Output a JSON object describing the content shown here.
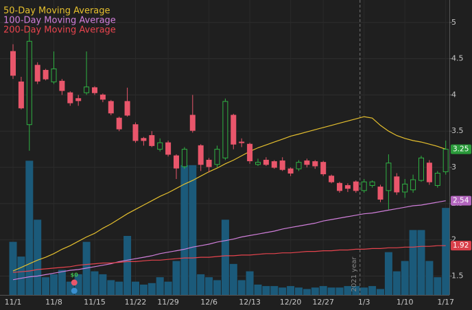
{
  "chart_data": {
    "type": "candlestick",
    "categories": [
      "11/1",
      null,
      null,
      null,
      null,
      "11/8",
      null,
      null,
      null,
      null,
      "11/15",
      null,
      null,
      null,
      null,
      "11/22",
      null,
      null,
      null,
      "11/29",
      null,
      null,
      null,
      null,
      "12/6",
      null,
      null,
      null,
      null,
      "12/13",
      null,
      null,
      null,
      null,
      "12/20",
      null,
      null,
      null,
      "12/27",
      null,
      null,
      null,
      null,
      "1/3",
      null,
      null,
      null,
      null,
      "1/10",
      null,
      null,
      null,
      null,
      "1/17"
    ],
    "open": [
      4.6,
      4.18,
      3.59,
      4.41,
      4.34,
      4.18,
      4.19,
      4.03,
      3.95,
      4.03,
      4.1,
      4.0,
      3.91,
      3.68,
      3.91,
      3.59,
      3.4,
      3.44,
      3.25,
      3.34,
      3.16,
      3.01,
      3.72,
      3.3,
      3.1,
      3.04,
      3.13,
      3.72,
      3.35,
      3.32,
      3.04,
      3.1,
      3.08,
      3.09,
      2.98,
      2.98,
      3.09,
      3.08,
      3.07,
      2.88,
      2.78,
      2.75,
      2.8,
      2.68,
      2.75,
      2.73,
      2.68,
      2.87,
      2.66,
      2.69,
      2.82,
      3.06,
      2.75,
      2.94
    ],
    "high": [
      4.7,
      4.25,
      4.95,
      4.45,
      4.36,
      4.6,
      4.22,
      4.05,
      4.0,
      4.6,
      4.12,
      4.02,
      3.93,
      3.7,
      4.1,
      3.62,
      3.42,
      3.5,
      3.4,
      3.37,
      3.18,
      3.28,
      4.0,
      3.32,
      3.13,
      3.3,
      3.95,
      3.74,
      3.4,
      3.34,
      3.12,
      3.14,
      3.1,
      3.14,
      3.0,
      3.1,
      3.12,
      3.1,
      3.09,
      2.9,
      2.8,
      2.78,
      2.82,
      2.84,
      2.82,
      2.76,
      3.18,
      2.92,
      2.84,
      2.9,
      3.16,
      3.1,
      2.95,
      3.37
    ],
    "low": [
      4.22,
      3.8,
      3.23,
      4.15,
      4.2,
      4.15,
      4.0,
      3.85,
      3.85,
      4.0,
      4.0,
      3.9,
      3.72,
      3.5,
      3.7,
      3.34,
      3.3,
      3.28,
      3.22,
      3.15,
      2.84,
      2.98,
      3.48,
      2.95,
      2.93,
      3.0,
      3.1,
      3.25,
      3.28,
      3.05,
      3.02,
      3.02,
      2.98,
      2.95,
      2.88,
      2.95,
      3.0,
      2.98,
      2.88,
      2.78,
      2.65,
      2.66,
      2.65,
      2.65,
      2.72,
      2.52,
      2.42,
      2.62,
      2.58,
      2.65,
      2.8,
      2.76,
      2.72,
      2.9
    ],
    "close": [
      4.27,
      3.82,
      4.74,
      4.19,
      4.22,
      4.36,
      4.06,
      3.89,
      3.92,
      4.11,
      4.03,
      3.94,
      3.75,
      3.53,
      3.72,
      3.37,
      3.37,
      3.3,
      3.34,
      3.18,
      2.99,
      3.25,
      3.51,
      3.04,
      3.01,
      3.25,
      3.91,
      3.32,
      3.34,
      3.09,
      3.07,
      3.04,
      3.0,
      2.97,
      2.92,
      3.07,
      3.04,
      3.02,
      2.91,
      2.8,
      2.68,
      2.71,
      2.68,
      2.8,
      2.8,
      2.56,
      3.06,
      2.66,
      2.77,
      2.83,
      3.13,
      2.8,
      2.92,
      3.25
    ],
    "up_color": "#2fb344",
    "down_color": "#e9566b",
    "volume": {
      "color": "#1b5a7a",
      "ylim": [
        0,
        100
      ],
      "values": [
        36,
        26,
        91,
        51,
        12,
        14,
        17,
        9,
        14,
        36,
        16,
        14,
        10,
        9,
        40,
        9,
        7,
        8,
        12,
        9,
        23,
        88,
        88,
        14,
        12,
        10,
        51,
        21,
        10,
        16,
        7,
        6,
        6,
        5,
        6,
        5,
        4,
        5,
        6,
        5,
        5,
        6,
        6,
        5,
        6,
        4,
        29,
        16,
        23,
        44,
        44,
        23,
        12,
        59
      ]
    },
    "series": [
      {
        "name": "50-Day Moving Average",
        "color": "#e6c02e",
        "values": [
          1.57,
          1.62,
          1.67,
          1.72,
          1.76,
          1.81,
          1.87,
          1.92,
          1.98,
          2.04,
          2.09,
          2.16,
          2.22,
          2.29,
          2.36,
          2.42,
          2.48,
          2.54,
          2.6,
          2.65,
          2.71,
          2.77,
          2.82,
          2.88,
          2.94,
          2.99,
          3.05,
          3.1,
          3.16,
          3.22,
          3.27,
          3.31,
          3.35,
          3.39,
          3.43,
          3.46,
          3.49,
          3.52,
          3.55,
          3.58,
          3.61,
          3.64,
          3.67,
          3.7,
          3.68,
          3.58,
          3.5,
          3.44,
          3.4,
          3.37,
          3.35,
          3.32,
          3.29,
          3.25
        ]
      },
      {
        "name": "100-Day Moving Average",
        "color": "#d17fdb",
        "values": [
          1.45,
          1.47,
          1.49,
          1.5,
          1.52,
          1.54,
          1.56,
          1.58,
          1.59,
          1.61,
          1.63,
          1.65,
          1.67,
          1.7,
          1.72,
          1.74,
          1.76,
          1.78,
          1.81,
          1.83,
          1.85,
          1.87,
          1.9,
          1.92,
          1.94,
          1.97,
          1.99,
          2.01,
          2.04,
          2.06,
          2.08,
          2.1,
          2.12,
          2.15,
          2.17,
          2.19,
          2.21,
          2.23,
          2.26,
          2.28,
          2.3,
          2.32,
          2.34,
          2.36,
          2.37,
          2.39,
          2.41,
          2.43,
          2.45,
          2.47,
          2.48,
          2.5,
          2.52,
          2.54
        ]
      },
      {
        "name": "200-Day Moving Average",
        "color": "#e8444e",
        "values": [
          1.55,
          1.56,
          1.57,
          1.59,
          1.6,
          1.61,
          1.62,
          1.63,
          1.65,
          1.66,
          1.67,
          1.68,
          1.68,
          1.69,
          1.7,
          1.7,
          1.71,
          1.72,
          1.72,
          1.73,
          1.74,
          1.75,
          1.75,
          1.76,
          1.76,
          1.77,
          1.78,
          1.78,
          1.79,
          1.79,
          1.8,
          1.81,
          1.81,
          1.82,
          1.82,
          1.83,
          1.84,
          1.84,
          1.85,
          1.85,
          1.86,
          1.86,
          1.87,
          1.87,
          1.88,
          1.88,
          1.89,
          1.89,
          1.9,
          1.9,
          1.91,
          1.91,
          1.92,
          1.92
        ]
      }
    ],
    "ylim": [
      1.24,
      5.31
    ],
    "yticks": [
      1.5,
      2,
      2.5,
      3,
      3.5,
      4,
      4.5,
      5
    ],
    "grid": true,
    "annotations": [
      "2021 year",
      "$0"
    ]
  }
}
